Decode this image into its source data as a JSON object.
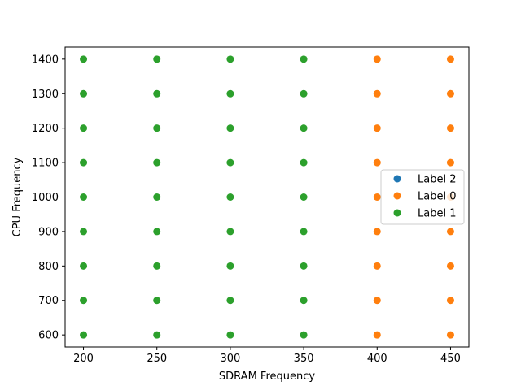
{
  "chart_data": {
    "type": "scatter",
    "xlabel": "SDRAM Frequency",
    "ylabel": "CPU Frequency",
    "xlim": [
      187.5,
      462.5
    ],
    "ylim": [
      565,
      1435
    ],
    "xticks": [
      200,
      250,
      300,
      350,
      400,
      450
    ],
    "yticks": [
      600,
      700,
      800,
      900,
      1000,
      1100,
      1200,
      1300,
      1400
    ],
    "grid": false,
    "legend_position": "right",
    "series": [
      {
        "name": "Label 2",
        "color": "#1f77b4",
        "x": [],
        "y": []
      },
      {
        "name": "Label 0",
        "color": "#ff7f0e",
        "x": [
          400,
          400,
          400,
          400,
          400,
          400,
          400,
          400,
          400,
          450,
          450,
          450,
          450,
          450,
          450,
          450,
          450,
          450
        ],
        "y": [
          600,
          700,
          800,
          900,
          1000,
          1100,
          1200,
          1300,
          1400,
          600,
          700,
          800,
          900,
          1000,
          1100,
          1200,
          1300,
          1400
        ]
      },
      {
        "name": "Label 1",
        "color": "#2ca02c",
        "x": [
          200,
          200,
          200,
          200,
          200,
          200,
          200,
          200,
          200,
          250,
          250,
          250,
          250,
          250,
          250,
          250,
          250,
          250,
          300,
          300,
          300,
          300,
          300,
          300,
          300,
          300,
          300,
          350,
          350,
          350,
          350,
          350,
          350,
          350,
          350,
          350
        ],
        "y": [
          600,
          700,
          800,
          900,
          1000,
          1100,
          1200,
          1300,
          1400,
          600,
          700,
          800,
          900,
          1000,
          1100,
          1200,
          1300,
          1400,
          600,
          700,
          800,
          900,
          1000,
          1100,
          1200,
          1300,
          1400,
          600,
          700,
          800,
          900,
          1000,
          1100,
          1200,
          1300,
          1400
        ]
      }
    ]
  }
}
